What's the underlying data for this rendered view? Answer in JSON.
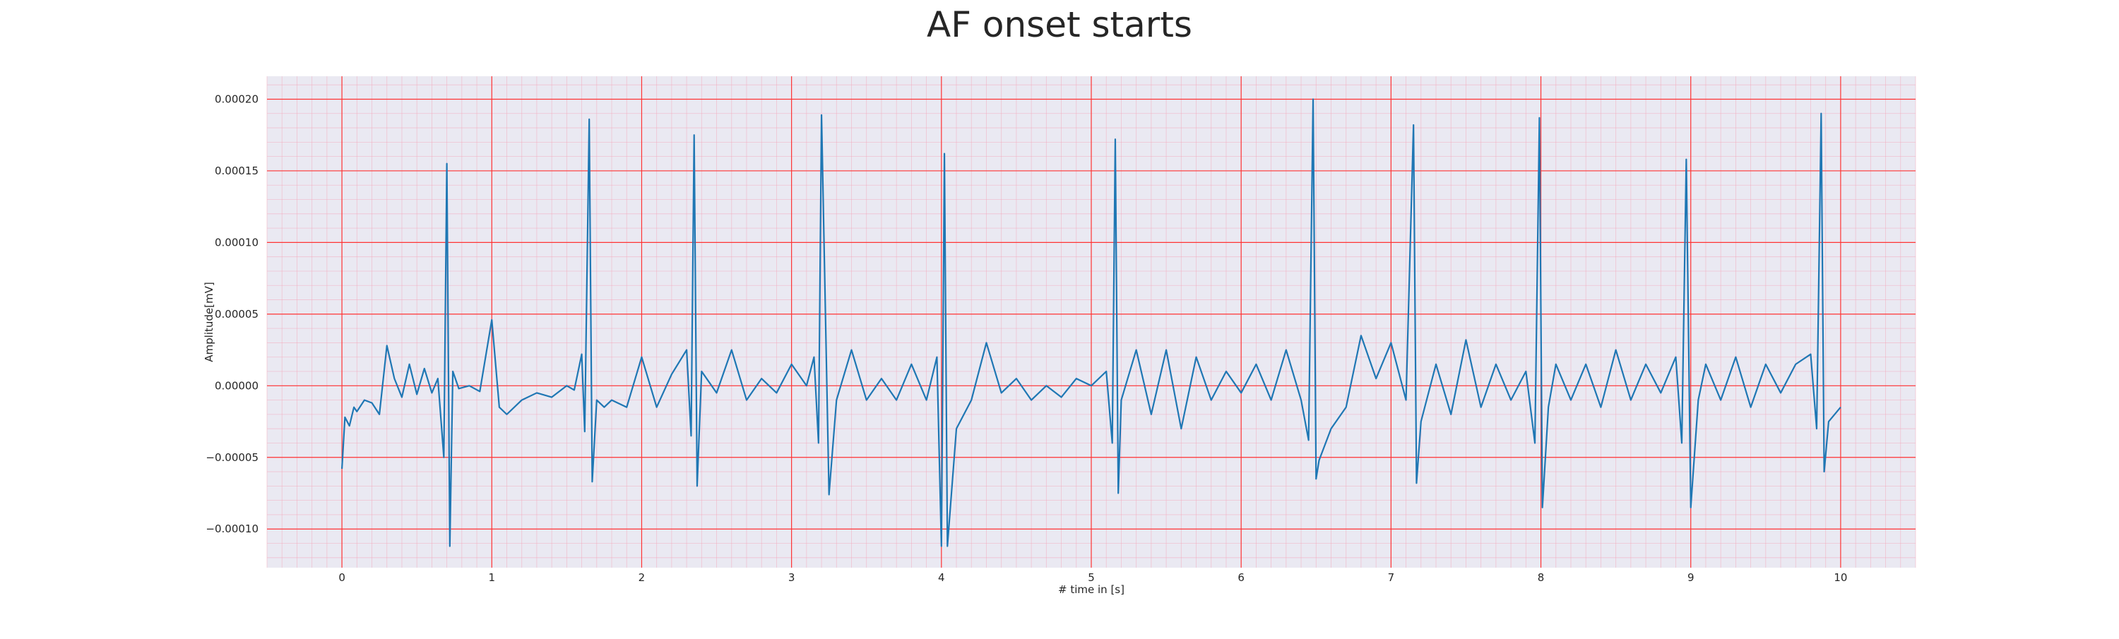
{
  "chart_data": {
    "type": "line",
    "title": "AF onset starts",
    "xlabel": "# time in [s]",
    "ylabel": "Amplitude[mV]",
    "xlim": [
      -0.5,
      10.5
    ],
    "ylim": [
      -0.000127,
      0.000216
    ],
    "xticks": [
      0,
      1,
      2,
      3,
      4,
      5,
      6,
      7,
      8,
      9,
      10
    ],
    "xtick_labels": [
      "0",
      "1",
      "2",
      "3",
      "4",
      "5",
      "6",
      "7",
      "8",
      "9",
      "10"
    ],
    "yticks": [
      -0.0001,
      -5e-05,
      0,
      5e-05,
      0.0001,
      0.00015,
      0.0002
    ],
    "ytick_labels": [
      "−0.00010",
      "−0.00005",
      "0.00000",
      "0.00005",
      "0.00010",
      "0.00015",
      "0.00020"
    ],
    "grid": true,
    "minor_grid": true,
    "legend": "none",
    "colors": {
      "line": "#1f77b4",
      "background": "#eae9f2",
      "major_grid": "#ff3333",
      "minor_grid": "#f4a8bb"
    },
    "series": [
      {
        "x": [
          0.0,
          0.02,
          0.05,
          0.08,
          0.1,
          0.15,
          0.2,
          0.25,
          0.3,
          0.35,
          0.4,
          0.45,
          0.5,
          0.55,
          0.6,
          0.64,
          0.68,
          0.7,
          0.72,
          0.74,
          0.78,
          0.85,
          0.92,
          1.0,
          1.05,
          1.1,
          1.2,
          1.3,
          1.4,
          1.5,
          1.55,
          1.6,
          1.62,
          1.65,
          1.67,
          1.7,
          1.75,
          1.8,
          1.9,
          2.0,
          2.1,
          2.2,
          2.3,
          2.33,
          2.35,
          2.37,
          2.4,
          2.5,
          2.6,
          2.7,
          2.8,
          2.9,
          3.0,
          3.1,
          3.15,
          3.18,
          3.2,
          3.25,
          3.3,
          3.4,
          3.5,
          3.6,
          3.7,
          3.8,
          3.9,
          3.97,
          4.0,
          4.02,
          4.04,
          4.1,
          4.2,
          4.3,
          4.4,
          4.5,
          4.6,
          4.7,
          4.8,
          4.9,
          5.0,
          5.1,
          5.14,
          5.16,
          5.18,
          5.2,
          5.3,
          5.4,
          5.5,
          5.6,
          5.7,
          5.8,
          5.9,
          6.0,
          6.1,
          6.2,
          6.3,
          6.4,
          6.45,
          6.48,
          6.5,
          6.52,
          6.6,
          6.7,
          6.8,
          6.9,
          7.0,
          7.1,
          7.15,
          7.17,
          7.2,
          7.3,
          7.4,
          7.5,
          7.6,
          7.7,
          7.8,
          7.9,
          7.96,
          7.99,
          8.01,
          8.05,
          8.1,
          8.2,
          8.3,
          8.4,
          8.5,
          8.6,
          8.7,
          8.8,
          8.9,
          8.94,
          8.97,
          9.0,
          9.05,
          9.1,
          9.2,
          9.3,
          9.4,
          9.5,
          9.6,
          9.7,
          9.8,
          9.84,
          9.87,
          9.89,
          9.92,
          10.0
        ],
        "y": [
          -5.8e-05,
          -2.2e-05,
          -2.8e-05,
          -1.5e-05,
          -1.8e-05,
          -1e-05,
          -1.2e-05,
          -2e-05,
          2.8e-05,
          5e-06,
          -8e-06,
          1.5e-05,
          -6e-06,
          1.2e-05,
          -5e-06,
          5e-06,
          -5e-05,
          0.000155,
          -0.000112,
          1e-05,
          -2e-06,
          0.0,
          -4e-06,
          4.6e-05,
          -1.5e-05,
          -2e-05,
          -1e-05,
          -5e-06,
          -8e-06,
          0.0,
          -3e-06,
          2.2e-05,
          -3.2e-05,
          0.000186,
          -6.7e-05,
          -1e-05,
          -1.5e-05,
          -1e-05,
          -1.5e-05,
          2e-05,
          -1.5e-05,
          8e-06,
          2.5e-05,
          -3.5e-05,
          0.000175,
          -7e-05,
          1e-05,
          -5e-06,
          2.5e-05,
          -1e-05,
          5e-06,
          -5e-06,
          1.5e-05,
          0.0,
          2e-05,
          -4e-05,
          0.000189,
          -7.6e-05,
          -1e-05,
          2.5e-05,
          -1e-05,
          5e-06,
          -1e-05,
          1.5e-05,
          -1e-05,
          2e-05,
          -0.000112,
          0.000162,
          -0.000112,
          -3e-05,
          -1e-05,
          3e-05,
          -5e-06,
          5e-06,
          -1e-05,
          0.0,
          -8e-06,
          5e-06,
          0.0,
          1e-05,
          -4e-05,
          0.000172,
          -7.5e-05,
          -1e-05,
          2.5e-05,
          -2e-05,
          2.5e-05,
          -3e-05,
          2e-05,
          -1e-05,
          1e-05,
          -5e-06,
          1.5e-05,
          -1e-05,
          2.5e-05,
          -1e-05,
          -3.8e-05,
          0.0002,
          -6.5e-05,
          -5.2e-05,
          -3e-05,
          -1.5e-05,
          3.5e-05,
          5e-06,
          3e-05,
          -1e-05,
          0.000182,
          -6.8e-05,
          -2.5e-05,
          1.5e-05,
          -2e-05,
          3.2e-05,
          -1.5e-05,
          1.5e-05,
          -1e-05,
          1e-05,
          -4e-05,
          0.000187,
          -8.5e-05,
          -1.5e-05,
          1.5e-05,
          -1e-05,
          1.5e-05,
          -1.5e-05,
          2.5e-05,
          -1e-05,
          1.5e-05,
          -5e-06,
          2e-05,
          -4e-05,
          0.000158,
          -8.5e-05,
          -1e-05,
          1.5e-05,
          -1e-05,
          2e-05,
          -1.5e-05,
          1.5e-05,
          -5e-06,
          1.5e-05,
          2.2e-05,
          -3e-05,
          0.00019,
          -6e-05,
          -2.5e-05,
          -1.5e-05
        ]
      }
    ]
  }
}
